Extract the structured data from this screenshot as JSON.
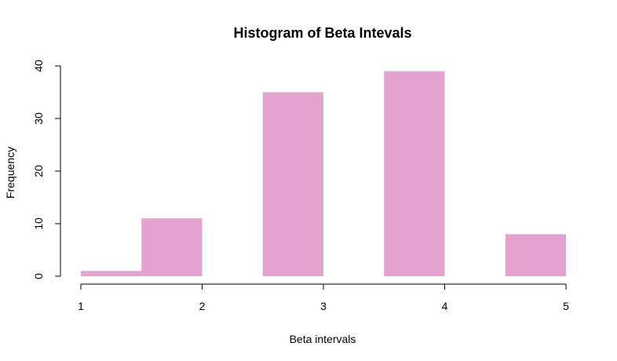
{
  "chart_data": {
    "type": "bar",
    "title": "Histogram of Beta Intevals",
    "xlabel": "Beta intervals",
    "ylabel": "Frequency",
    "bar_color": "#e3a3cf",
    "bins": [
      {
        "x0": 1.0,
        "x1": 1.5,
        "value": 1
      },
      {
        "x0": 1.5,
        "x1": 2.0,
        "value": 11
      },
      {
        "x0": 2.5,
        "x1": 3.0,
        "value": 35
      },
      {
        "x0": 3.5,
        "x1": 4.0,
        "value": 39
      },
      {
        "x0": 4.5,
        "x1": 5.0,
        "value": 8
      }
    ],
    "xlim": [
      1,
      5
    ],
    "ylim": [
      0,
      40
    ],
    "x_ticks": [
      "1",
      "2",
      "3",
      "4",
      "5"
    ],
    "y_ticks": [
      "0",
      "10",
      "20",
      "30",
      "40"
    ],
    "grid": false,
    "legend": "none"
  }
}
